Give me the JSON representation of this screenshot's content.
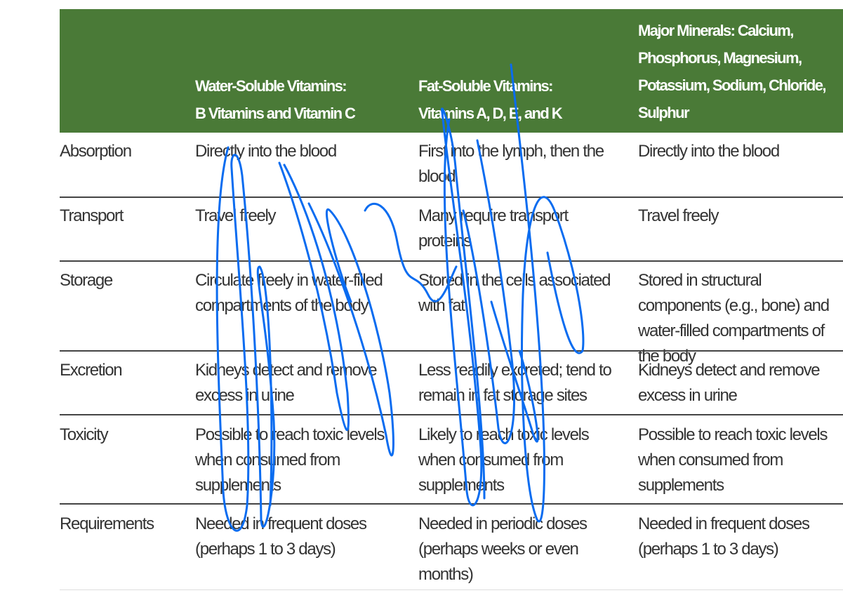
{
  "table": {
    "headers": [
      "",
      "Water-Soluble Vitamins: B Vitamins and Vitamin C",
      "Fat-Soluble Vitamins: Vitamins A, D, E, and K",
      "Major Minerals: Calcium, Phosphorus, Magnesium, Potassium, Sodium, Chloride, Sulphur"
    ],
    "header_lines": [
      [],
      [
        "Water-Soluble Vitamins:",
        "B Vitamins and Vitamin C"
      ],
      [
        "Fat-Soluble Vitamins:",
        "Vitamins A, D, E, and K"
      ],
      [
        "Major Minerals: Calcium,",
        "Phosphorus, Magnesium,",
        "Potassium, Sodium, Chloride,",
        "Sulphur"
      ]
    ],
    "rows": [
      {
        "label": "Absorption",
        "water": "Directly into the blood",
        "fat": "First into the lymph, then the blood",
        "minerals": "Directly into the blood"
      },
      {
        "label": "Transport",
        "water": "Travel freely",
        "fat": "Many require transport proteins",
        "minerals": "Travel freely"
      },
      {
        "label": "Storage",
        "water": "Circulate freely in water-filled compartments of the body",
        "fat": "Stored in the cells associated with fat",
        "minerals": "Stored in structural components (e.g., bone) and water-filled compartments of the body"
      },
      {
        "label": "Excretion",
        "water": "Kidneys detect and remove excess in urine",
        "fat": "Less readily excreted; tend to remain in fat storage sites",
        "minerals": "Kidneys detect and remove excess in urine"
      },
      {
        "label": "Toxicity",
        "water": "Possible to reach toxic levels when consumed from supplements",
        "fat": "Likely to reach toxic levels when consumed from supplements",
        "minerals": "Possible to reach toxic levels when consumed from supplements"
      },
      {
        "label": "Requirements",
        "water": "Needed in frequent doses (perhaps 1 to 3 days)",
        "fat": "Needed in periodic doses (perhaps weeks or even months)",
        "minerals": "Needed in frequent doses (perhaps 1 to 3 days)"
      }
    ]
  },
  "colors": {
    "header_bg": "#4a7a37",
    "scribble": "#0a6cf0"
  }
}
